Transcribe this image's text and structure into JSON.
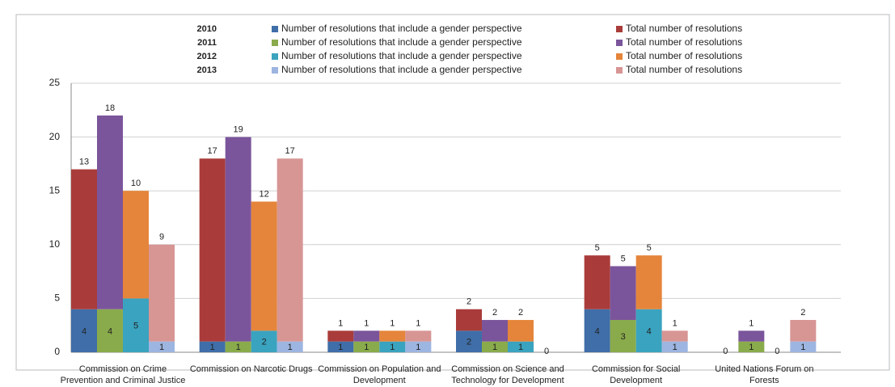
{
  "chart_data": {
    "type": "bar",
    "categories": [
      "Commission on Crime Prevention and Criminal Justice",
      "Commission on Narcotic Drugs",
      "Commission on Population and Development",
      "Commission on Science and Technology for Development",
      "Commission for Social Development",
      "United Nations Forum on Forests"
    ],
    "series": [
      {
        "year": "2010",
        "gender": {
          "name": "Number of resolutions that include a gender perspective",
          "color": "#3f6ea8",
          "values": [
            4,
            1,
            1,
            2,
            4,
            0
          ]
        },
        "total": {
          "name": "Total number of resolutions",
          "color": "#a93c3a",
          "values": [
            13,
            17,
            1,
            2,
            5,
            null
          ]
        }
      },
      {
        "year": "2011",
        "gender": {
          "name": "Number of resolutions that include a gender perspective",
          "color": "#8aab4b",
          "values": [
            4,
            1,
            1,
            1,
            3,
            1
          ]
        },
        "total": {
          "name": "Total number of resolutions",
          "color": "#7b559b",
          "values": [
            18,
            19,
            1,
            2,
            5,
            1
          ]
        }
      },
      {
        "year": "2012",
        "gender": {
          "name": "Number of resolutions that include a gender perspective",
          "color": "#3aa3bf",
          "values": [
            5,
            2,
            1,
            1,
            4,
            0
          ]
        },
        "total": {
          "name": "Total number of resolutions",
          "color": "#e5853b",
          "values": [
            10,
            12,
            1,
            2,
            5,
            null
          ]
        }
      },
      {
        "year": "2013",
        "gender": {
          "name": "Number of resolutions that include a gender perspective",
          "color": "#9db5e1",
          "values": [
            1,
            1,
            1,
            0,
            1,
            1
          ]
        },
        "total": {
          "name": "Total number of resolutions",
          "color": "#d79594",
          "values": [
            9,
            17,
            1,
            null,
            1,
            2
          ]
        }
      }
    ],
    "stacked": true,
    "ylim": [
      0,
      25
    ],
    "yticks": [
      0,
      5,
      10,
      15,
      20,
      25
    ],
    "grid": true
  }
}
